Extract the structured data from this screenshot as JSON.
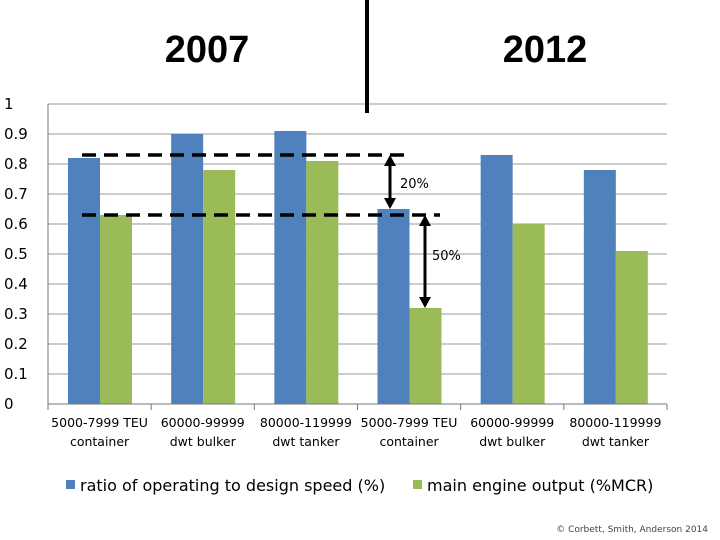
{
  "chart_data": {
    "type": "bar",
    "period_labels": [
      "2007",
      "2012"
    ],
    "categories": [
      {
        "line1": "5000-7999 TEU",
        "line2": "container"
      },
      {
        "line1": "60000-99999",
        "line2": "dwt bulker"
      },
      {
        "line1": "80000-119999",
        "line2": "dwt tanker"
      },
      {
        "line1": "5000-7999 TEU",
        "line2": "container"
      },
      {
        "line1": "60000-99999",
        "line2": "dwt bulker"
      },
      {
        "line1": "80000-119999",
        "line2": "dwt tanker"
      }
    ],
    "series": [
      {
        "name": "ratio of operating to design speed (%)",
        "color": "#4f81bd",
        "values": [
          0.82,
          0.9,
          0.91,
          0.65,
          0.83,
          0.78
        ]
      },
      {
        "name": "main engine output (%MCR)",
        "color": "#9bbb59",
        "values": [
          0.63,
          0.78,
          0.81,
          0.32,
          0.6,
          0.51
        ]
      }
    ],
    "ylim": [
      0,
      1
    ],
    "yticks": [
      0,
      0.1,
      0.2,
      0.3,
      0.4,
      0.5,
      0.6,
      0.7,
      0.8,
      0.9,
      1
    ],
    "ytick_labels": [
      "0",
      "0.1",
      "0.2",
      "0.3",
      "0.4",
      "0.5",
      "0.6",
      "0.7",
      "0.8",
      "0.9",
      "1"
    ],
    "grid": true,
    "legend_position": "bottom",
    "reference_lines": [
      {
        "value": 0.83,
        "from_category": 0,
        "to_category": 3
      },
      {
        "value": 0.63,
        "from_category": 0,
        "to_category": 3
      }
    ],
    "annotations": [
      {
        "text": "20%",
        "category": 3,
        "from": 0.83,
        "to": 0.65
      },
      {
        "text": "50%",
        "category": 3,
        "from": 0.63,
        "to": 0.32
      }
    ],
    "credit": "© Corbett, Smith, Anderson 2014"
  }
}
